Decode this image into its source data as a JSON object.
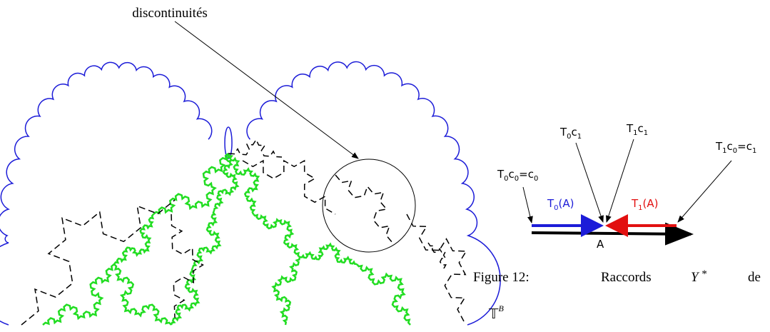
{
  "annotation": "discontinuités",
  "labels": {
    "t0c1": [
      "T",
      "0",
      "c",
      "1"
    ],
    "t1c1": [
      "T",
      "1",
      "c",
      "1"
    ],
    "t1c0": [
      "T",
      "1",
      "c",
      "0",
      "=c",
      "1"
    ],
    "t0c0": [
      "T",
      "0",
      "c",
      "0",
      "=c",
      "0"
    ],
    "t0a": [
      "T",
      "0",
      "(A)"
    ],
    "t1a": [
      "T",
      "1",
      "(A)"
    ],
    "a": "A"
  },
  "caption": {
    "label": "Figure 12:",
    "text": "Raccords",
    "symbol": "Υ",
    "star": "*",
    "de": "de",
    "space": "𝕋",
    "sup": "B"
  }
}
